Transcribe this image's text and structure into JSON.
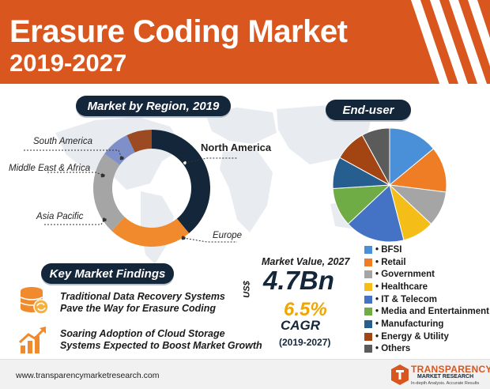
{
  "header": {
    "title_line1": "Erasure Coding Market",
    "title_line2": "2019-2027"
  },
  "sections": {
    "region": "Market by Region, 2019",
    "enduser": "End-user",
    "findings": "Key Market Findings"
  },
  "chart_data": [
    {
      "type": "pie",
      "variant": "donut",
      "title": "Market by Region, 2019",
      "categories": [
        "North America",
        "Europe",
        "Asia Pacific",
        "Middle East & Africa",
        "South America"
      ],
      "values": [
        39,
        23,
        23,
        8,
        7
      ],
      "colors": [
        "#14263a",
        "#f08a2c",
        "#a5a5a5",
        "#7e8fca",
        "#9c4a22"
      ],
      "labels_visible": [
        "North America",
        "Europe",
        "Asia Pacific",
        "Middle East & Africa",
        "South America"
      ]
    },
    {
      "type": "pie",
      "title": "End-user",
      "categories": [
        "BFSI",
        "Retail",
        "Government",
        "Healthcare",
        "IT & Telecom",
        "Media and Entertainment",
        "Manufacturing",
        "Energy & Utility",
        "Others"
      ],
      "values": [
        14,
        13,
        10,
        9,
        17,
        11,
        9,
        9,
        8
      ],
      "colors": [
        "#4a90d9",
        "#ee7d26",
        "#a5a5a5",
        "#f4bd18",
        "#4472c4",
        "#6fac46",
        "#265e8f",
        "#a34512",
        "#5b5b5b"
      ],
      "legend_position": "bottom-right"
    }
  ],
  "findings": [
    {
      "line1": "Traditional Data Recovery Systems",
      "line2": "Pave the Way for Erasure Coding",
      "icon": "database-refresh-icon"
    },
    {
      "line1": "Soaring Adoption of Cloud Storage",
      "line2": "Systems Expected to Boost Market Growth",
      "icon": "growth-chart-icon"
    }
  ],
  "market": {
    "label": "Market Value, 2027",
    "currency": "US$",
    "value": "4.7Bn",
    "cagr_value": "6.5%",
    "cagr_label": "CAGR",
    "cagr_period": "(2019-2027)"
  },
  "footer": {
    "url": "www.transparencymarketresearch.com",
    "brand_name": "TRANSPARENCY",
    "brand_sub": "MARKET RESEARCH",
    "brand_tagline": "In-depth Analysis. Accurate Results"
  }
}
